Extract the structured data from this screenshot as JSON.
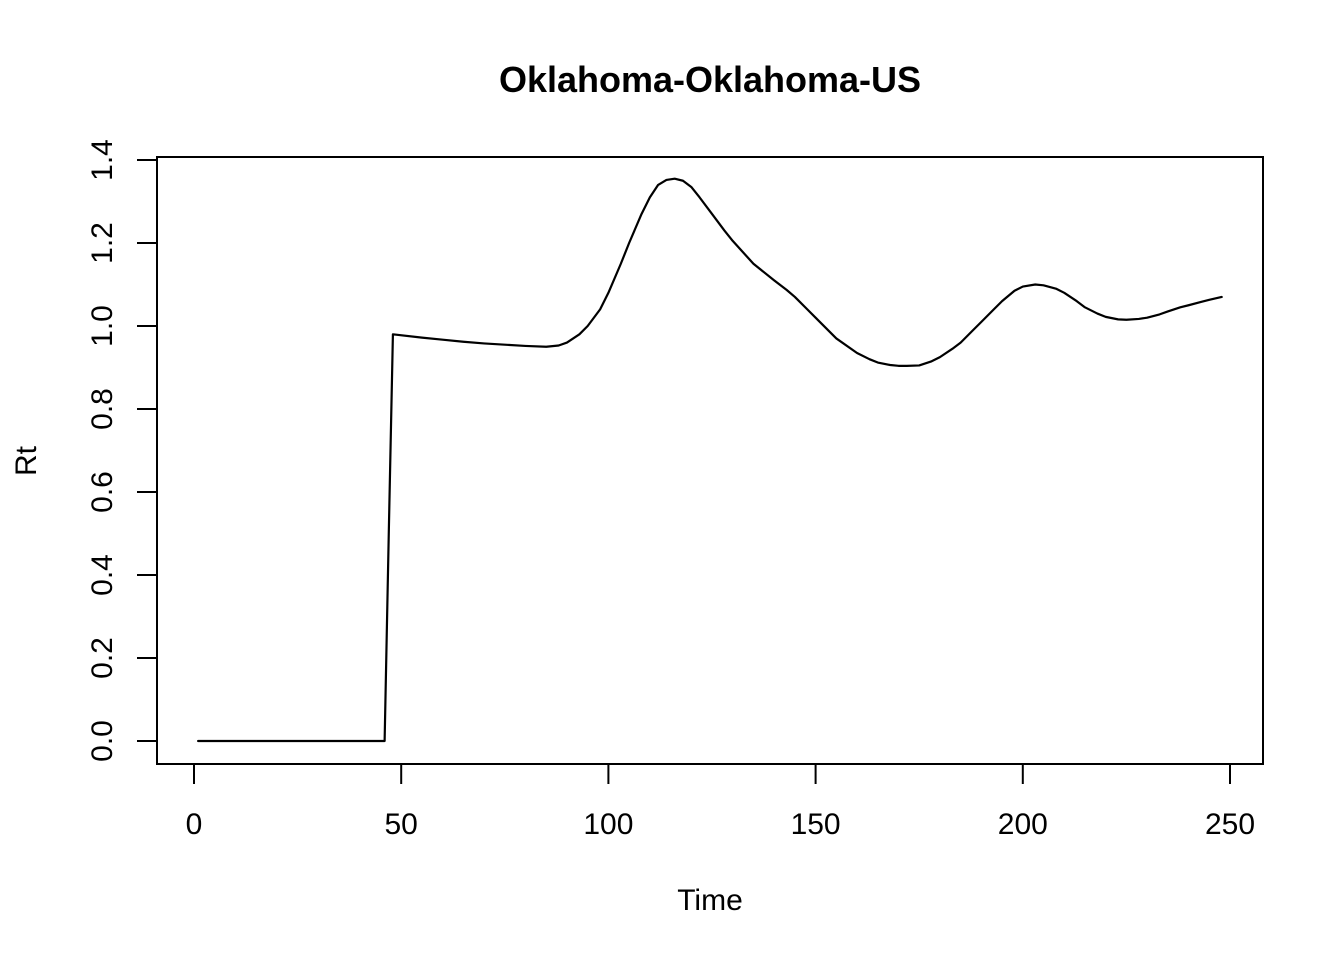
{
  "chart_data": {
    "type": "line",
    "title": "Oklahoma-Oklahoma-US",
    "xlabel": "Time",
    "ylabel": "Rt",
    "xlim": [
      0,
      250
    ],
    "ylim": [
      0,
      1.4
    ],
    "x_ticks": [
      0,
      50,
      100,
      150,
      200,
      250
    ],
    "y_ticks": [
      0.0,
      0.2,
      0.4,
      0.6,
      0.8,
      1.0,
      1.2,
      1.4
    ],
    "x_tick_labels": [
      "0",
      "50",
      "100",
      "150",
      "200",
      "250"
    ],
    "y_tick_labels": [
      "0.0",
      "0.2",
      "0.4",
      "0.6",
      "0.8",
      "1.0",
      "1.2",
      "1.4"
    ],
    "grid": false,
    "series": [
      {
        "color": "#000000",
        "x": [
          1,
          46,
          47,
          48,
          55,
          60,
          65,
          70,
          75,
          80,
          85,
          88,
          90,
          93,
          95,
          98,
          100,
          103,
          105,
          108,
          110,
          112,
          114,
          116,
          118,
          120,
          122,
          125,
          128,
          130,
          135,
          140,
          143,
          145,
          148,
          150,
          155,
          160,
          163,
          165,
          168,
          170,
          172,
          175,
          178,
          180,
          183,
          185,
          188,
          190,
          193,
          195,
          198,
          200,
          203,
          205,
          208,
          210,
          213,
          215,
          218,
          220,
          223,
          225,
          228,
          230,
          233,
          235,
          238,
          240,
          243,
          245,
          248
        ],
        "y": [
          0.0,
          0.0,
          0.5,
          0.98,
          0.972,
          0.967,
          0.962,
          0.958,
          0.955,
          0.952,
          0.95,
          0.953,
          0.96,
          0.98,
          1.0,
          1.04,
          1.08,
          1.15,
          1.2,
          1.27,
          1.31,
          1.34,
          1.352,
          1.355,
          1.35,
          1.335,
          1.31,
          1.27,
          1.23,
          1.205,
          1.15,
          1.11,
          1.087,
          1.07,
          1.04,
          1.02,
          0.97,
          0.935,
          0.92,
          0.912,
          0.906,
          0.904,
          0.904,
          0.905,
          0.915,
          0.925,
          0.945,
          0.96,
          0.99,
          1.01,
          1.04,
          1.06,
          1.085,
          1.095,
          1.1,
          1.098,
          1.09,
          1.08,
          1.06,
          1.045,
          1.03,
          1.022,
          1.016,
          1.015,
          1.017,
          1.02,
          1.028,
          1.035,
          1.045,
          1.05,
          1.058,
          1.063,
          1.07
        ]
      }
    ]
  }
}
